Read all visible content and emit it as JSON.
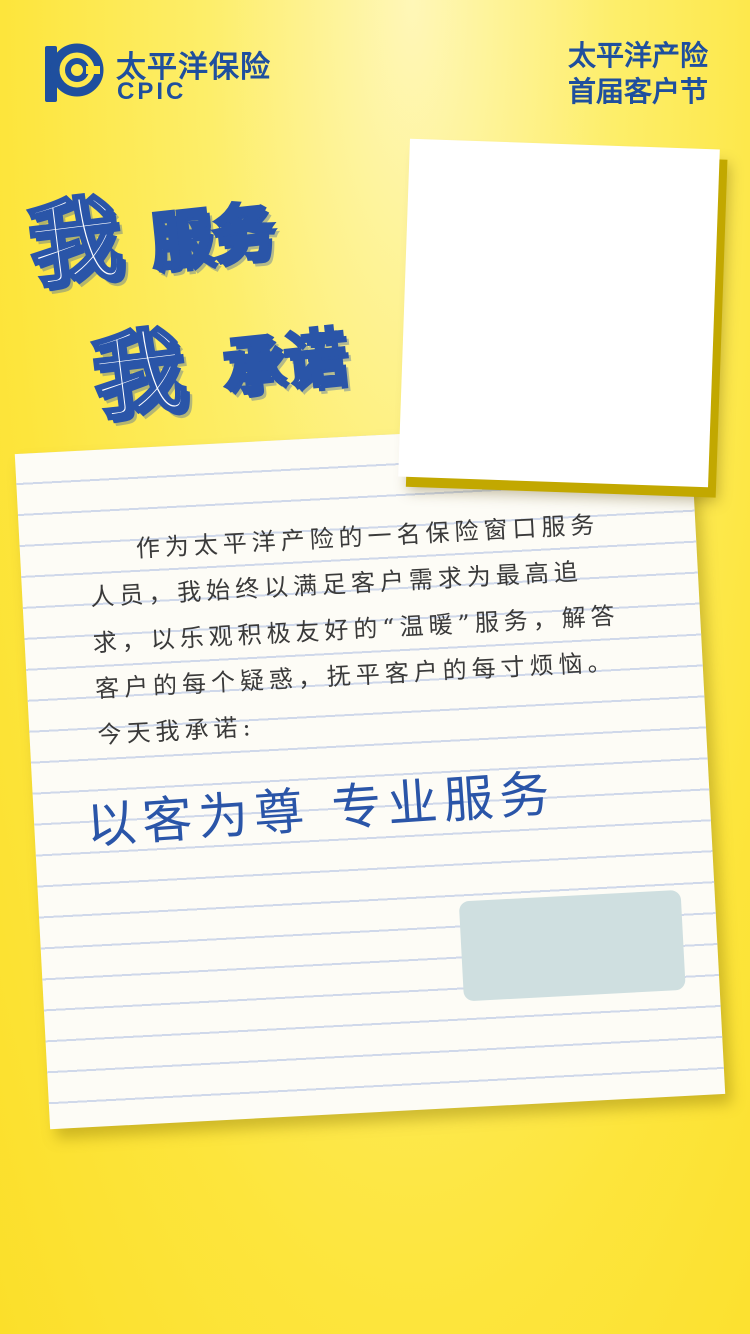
{
  "header": {
    "brand_name_cn": "太平洋保险",
    "brand_name_en": "CPIC",
    "festival_line1": "太平洋产险",
    "festival_line2": "首届客户节"
  },
  "headline": {
    "wo_1": "我",
    "fuwu": "服务",
    "wo_2": "我",
    "chengnuo": "承诺"
  },
  "letter": {
    "body": "作为太平洋产险的一名保险窗口服务人员，我始终以满足客户需求为最高追求，以乐观积极友好的“温暖”服务，解答客户的每个疑惑，抚平客户的每寸烦恼。今天我承诺:",
    "pledge": "以客为尊 专业服务"
  },
  "colors": {
    "brand_blue": "#1f4f9e",
    "background_yellow": "#fde53c",
    "signature_box": "#cfdfe0"
  }
}
